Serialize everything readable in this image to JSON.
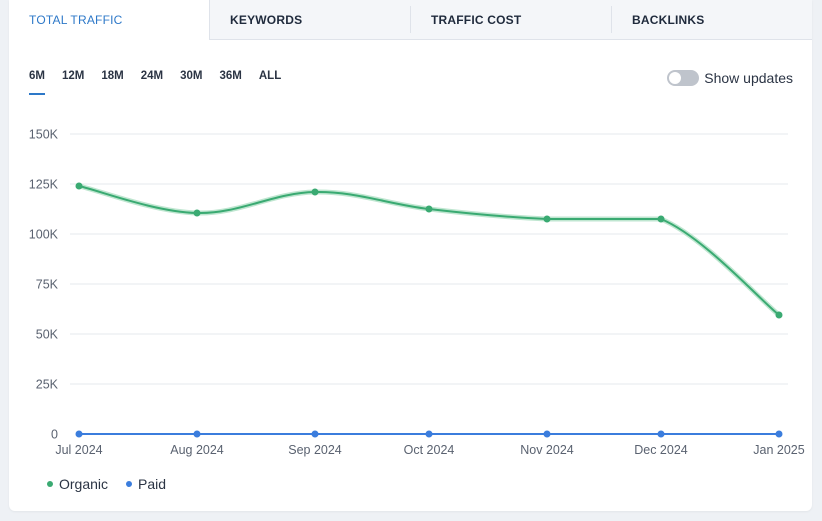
{
  "tabs": [
    {
      "label": "TOTAL TRAFFIC",
      "active": true
    },
    {
      "label": "KEYWORDS",
      "active": false
    },
    {
      "label": "TRAFFIC COST",
      "active": false
    },
    {
      "label": "BACKLINKS",
      "active": false
    }
  ],
  "ranges": [
    "6M",
    "12M",
    "18M",
    "24M",
    "30M",
    "36M",
    "ALL"
  ],
  "active_range": "6M",
  "toggle": {
    "label": "Show updates",
    "on": false
  },
  "legend": [
    {
      "name": "Organic",
      "color": "#3aaa72"
    },
    {
      "name": "Paid",
      "color": "#3b7ddd"
    }
  ],
  "chart_data": {
    "type": "line",
    "x": [
      "Jul 2024",
      "Aug 2024",
      "Sep 2024",
      "Oct 2024",
      "Nov 2024",
      "Dec 2024",
      "Jan 2025"
    ],
    "series": [
      {
        "name": "Organic",
        "values": [
          124000,
          110500,
          121000,
          112500,
          107500,
          107500,
          59500
        ]
      },
      {
        "name": "Paid",
        "values": [
          0,
          0,
          0,
          0,
          0,
          0,
          0
        ]
      }
    ],
    "y_ticks": [
      "0",
      "25K",
      "50K",
      "75K",
      "100K",
      "125K",
      "150K"
    ],
    "y_tick_values": [
      0,
      25000,
      50000,
      75000,
      100000,
      125000,
      150000
    ],
    "ylim": [
      0,
      150000
    ],
    "grid": true,
    "legend_position": "bottom-left"
  }
}
